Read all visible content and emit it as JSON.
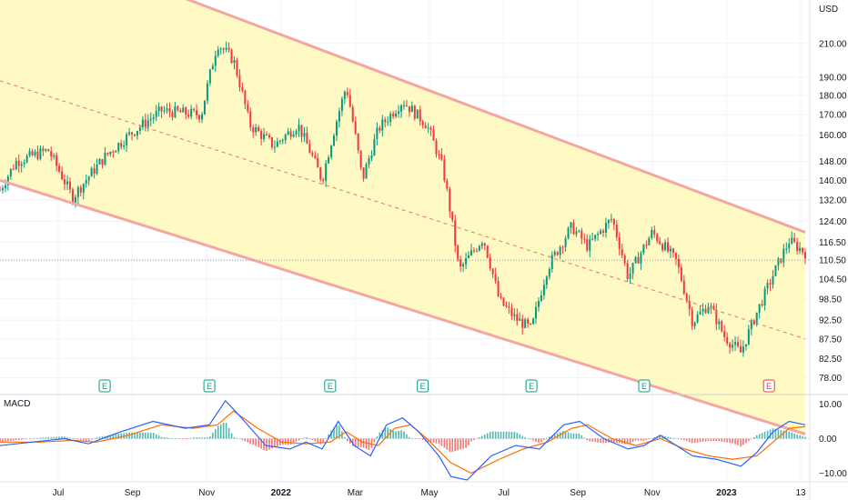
{
  "chart_data": {
    "type": "candlestick",
    "currency": "USD",
    "price_axis": {
      "ticks": [
        "210.00",
        "190.00",
        "180.00",
        "170.00",
        "160.00",
        "148.00",
        "140.00",
        "132.00",
        "124.00",
        "116.50",
        "110.50",
        "104.50",
        "98.50",
        "92.50",
        "87.50",
        "82.50",
        "78.00"
      ],
      "scale": "log",
      "range": [
        75,
        235
      ]
    },
    "time_axis": {
      "labels": [
        "Jul",
        "Sep",
        "Nov",
        "2022",
        "Mar",
        "May",
        "Jul",
        "Sep",
        "Nov",
        "2023",
        "13"
      ],
      "bold": [
        "2022",
        "2023"
      ]
    },
    "price_path": [
      {
        "t": 0.0,
        "price": 136
      },
      {
        "t": 0.02,
        "price": 148
      },
      {
        "t": 0.06,
        "price": 153
      },
      {
        "t": 0.09,
        "price": 133
      },
      {
        "t": 0.13,
        "price": 150
      },
      {
        "t": 0.16,
        "price": 160
      },
      {
        "t": 0.2,
        "price": 172
      },
      {
        "t": 0.25,
        "price": 170
      },
      {
        "t": 0.27,
        "price": 210
      },
      {
        "t": 0.29,
        "price": 200
      },
      {
        "t": 0.31,
        "price": 165
      },
      {
        "t": 0.34,
        "price": 155
      },
      {
        "t": 0.37,
        "price": 165
      },
      {
        "t": 0.4,
        "price": 140
      },
      {
        "t": 0.43,
        "price": 185
      },
      {
        "t": 0.45,
        "price": 140
      },
      {
        "t": 0.47,
        "price": 163
      },
      {
        "t": 0.5,
        "price": 177
      },
      {
        "t": 0.53,
        "price": 165
      },
      {
        "t": 0.55,
        "price": 145
      },
      {
        "t": 0.57,
        "price": 107
      },
      {
        "t": 0.6,
        "price": 118
      },
      {
        "t": 0.62,
        "price": 98
      },
      {
        "t": 0.64,
        "price": 93
      },
      {
        "t": 0.66,
        "price": 90
      },
      {
        "t": 0.68,
        "price": 108
      },
      {
        "t": 0.71,
        "price": 122
      },
      {
        "t": 0.73,
        "price": 115
      },
      {
        "t": 0.76,
        "price": 125
      },
      {
        "t": 0.78,
        "price": 105
      },
      {
        "t": 0.81,
        "price": 120
      },
      {
        "t": 0.84,
        "price": 110
      },
      {
        "t": 0.86,
        "price": 92
      },
      {
        "t": 0.88,
        "price": 97
      },
      {
        "t": 0.9,
        "price": 88
      },
      {
        "t": 0.92,
        "price": 84
      },
      {
        "t": 0.95,
        "price": 100
      },
      {
        "t": 0.98,
        "price": 117
      },
      {
        "t": 1.0,
        "price": 113
      }
    ],
    "current_price_line": 110.5,
    "channel": {
      "upper": [
        {
          "t": 0.0,
          "price": 295
        },
        {
          "t": 1.0,
          "price": 120
        }
      ],
      "mid": [
        {
          "t": 0.0,
          "price": 188
        },
        {
          "t": 1.0,
          "price": 87.5
        }
      ],
      "lower": [
        {
          "t": 0.0,
          "price": 140
        },
        {
          "t": 1.0,
          "price": 66
        }
      ]
    },
    "earnings_markers": {
      "label": "E",
      "positions": [
        0.13,
        0.26,
        0.41,
        0.525,
        0.66,
        0.8
      ],
      "upcoming_position": 0.955
    },
    "macd": {
      "title": "MACD",
      "ticks": [
        "10.00",
        "0.00",
        "−10.00"
      ],
      "range": [
        -12,
        12
      ],
      "macd_line": [
        {
          "t": 0.0,
          "v": -2
        },
        {
          "t": 0.04,
          "v": -1
        },
        {
          "t": 0.08,
          "v": 0
        },
        {
          "t": 0.11,
          "v": -1.5
        },
        {
          "t": 0.15,
          "v": 2
        },
        {
          "t": 0.19,
          "v": 5
        },
        {
          "t": 0.23,
          "v": 3
        },
        {
          "t": 0.26,
          "v": 4
        },
        {
          "t": 0.28,
          "v": 11
        },
        {
          "t": 0.3,
          "v": 6
        },
        {
          "t": 0.33,
          "v": -2
        },
        {
          "t": 0.36,
          "v": -3
        },
        {
          "t": 0.38,
          "v": -1
        },
        {
          "t": 0.4,
          "v": -3
        },
        {
          "t": 0.42,
          "v": 5
        },
        {
          "t": 0.44,
          "v": -2
        },
        {
          "t": 0.46,
          "v": -5
        },
        {
          "t": 0.48,
          "v": 4
        },
        {
          "t": 0.5,
          "v": 6
        },
        {
          "t": 0.52,
          "v": 2
        },
        {
          "t": 0.545,
          "v": -5
        },
        {
          "t": 0.56,
          "v": -11
        },
        {
          "t": 0.58,
          "v": -12
        },
        {
          "t": 0.61,
          "v": -5
        },
        {
          "t": 0.64,
          "v": -2
        },
        {
          "t": 0.67,
          "v": -3
        },
        {
          "t": 0.7,
          "v": 4
        },
        {
          "t": 0.72,
          "v": 5
        },
        {
          "t": 0.75,
          "v": 0
        },
        {
          "t": 0.78,
          "v": -3
        },
        {
          "t": 0.8,
          "v": -2
        },
        {
          "t": 0.82,
          "v": 1
        },
        {
          "t": 0.84,
          "v": -2
        },
        {
          "t": 0.86,
          "v": -5
        },
        {
          "t": 0.89,
          "v": -6
        },
        {
          "t": 0.92,
          "v": -8
        },
        {
          "t": 0.94,
          "v": -4
        },
        {
          "t": 0.96,
          "v": 2
        },
        {
          "t": 0.98,
          "v": 5
        },
        {
          "t": 1.0,
          "v": 4
        }
      ],
      "signal_line": [
        {
          "t": 0.0,
          "v": -1
        },
        {
          "t": 0.05,
          "v": -1
        },
        {
          "t": 0.09,
          "v": -0.5
        },
        {
          "t": 0.12,
          "v": -1
        },
        {
          "t": 0.16,
          "v": 1
        },
        {
          "t": 0.2,
          "v": 4
        },
        {
          "t": 0.24,
          "v": 3
        },
        {
          "t": 0.27,
          "v": 4
        },
        {
          "t": 0.29,
          "v": 8
        },
        {
          "t": 0.32,
          "v": 3
        },
        {
          "t": 0.35,
          "v": -1
        },
        {
          "t": 0.38,
          "v": -1.5
        },
        {
          "t": 0.41,
          "v": -1
        },
        {
          "t": 0.43,
          "v": 2
        },
        {
          "t": 0.45,
          "v": -1
        },
        {
          "t": 0.47,
          "v": -2
        },
        {
          "t": 0.49,
          "v": 3
        },
        {
          "t": 0.51,
          "v": 4
        },
        {
          "t": 0.53,
          "v": 0
        },
        {
          "t": 0.56,
          "v": -7
        },
        {
          "t": 0.585,
          "v": -10
        },
        {
          "t": 0.62,
          "v": -6
        },
        {
          "t": 0.65,
          "v": -3
        },
        {
          "t": 0.68,
          "v": -1
        },
        {
          "t": 0.71,
          "v": 3
        },
        {
          "t": 0.73,
          "v": 4
        },
        {
          "t": 0.76,
          "v": 0
        },
        {
          "t": 0.79,
          "v": -2
        },
        {
          "t": 0.82,
          "v": 0
        },
        {
          "t": 0.85,
          "v": -3
        },
        {
          "t": 0.88,
          "v": -5
        },
        {
          "t": 0.91,
          "v": -6
        },
        {
          "t": 0.94,
          "v": -5
        },
        {
          "t": 0.96,
          "v": -1
        },
        {
          "t": 0.98,
          "v": 3
        },
        {
          "t": 1.0,
          "v": 3.5
        }
      ]
    },
    "colors": {
      "up": "#089981",
      "down": "#f23645",
      "channel_fill": "#fff9c4",
      "channel_line": "#f4a6a0",
      "mid_line": "#e57373",
      "macd_line": "#2962ff",
      "signal_line": "#ff6d00",
      "grid": "#f0f3fa",
      "axis_text": "#131722"
    }
  }
}
